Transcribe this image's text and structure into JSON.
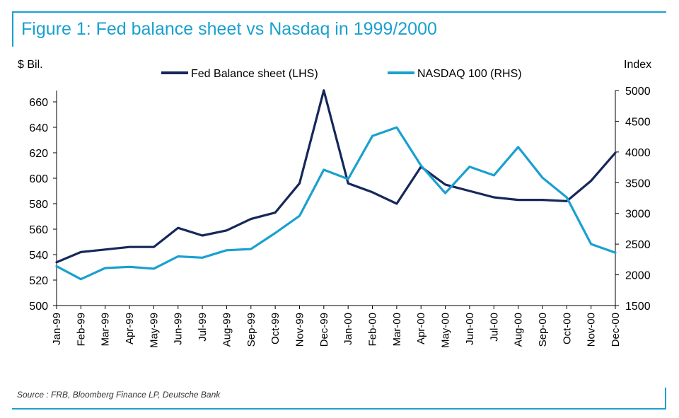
{
  "title": "Figure 1: Fed balance sheet vs Nasdaq in 1999/2000",
  "source": "Source : FRB, Bloomberg Finance LP, Deutsche Bank",
  "colors": {
    "accent": "#1aa0d0",
    "fed": "#16285a",
    "nasdaq": "#1aa0d0"
  },
  "chart_data": {
    "type": "line",
    "title": "Figure 1: Fed balance sheet vs Nasdaq in 1999/2000",
    "ylabel_left": "$ Bil.",
    "ylabel_right": "Index",
    "categories": [
      "Jan-99",
      "Feb-99",
      "Mar-99",
      "Apr-99",
      "May-99",
      "Jun-99",
      "Jul-99",
      "Aug-99",
      "Sep-99",
      "Oct-99",
      "Nov-99",
      "Dec-99",
      "Jan-00",
      "Feb-00",
      "Mar-00",
      "Apr-00",
      "May-00",
      "Jun-00",
      "Jul-00",
      "Aug-00",
      "Sep-00",
      "Oct-00",
      "Nov-00",
      "Dec-00"
    ],
    "ylim_left": [
      500,
      660
    ],
    "yticks_left": [
      500,
      520,
      540,
      560,
      580,
      600,
      620,
      640,
      660
    ],
    "ylim_right": [
      1500,
      5000
    ],
    "yticks_right": [
      1500,
      2000,
      2500,
      3000,
      3500,
      4000,
      4500,
      5000
    ],
    "legend": "top",
    "grid": false,
    "series": [
      {
        "name": "Fed Balance sheet (LHS)",
        "axis": "left",
        "color": "#16285a",
        "values": [
          534,
          542,
          544,
          546,
          546,
          561,
          555,
          559,
          568,
          573,
          596,
          669,
          596,
          589,
          580,
          609,
          595,
          590,
          585,
          583,
          583,
          582,
          598,
          620
        ]
      },
      {
        "name": "NASDAQ 100 (RHS)",
        "axis": "right",
        "color": "#1aa0d0",
        "values": [
          2140,
          1930,
          2110,
          2130,
          2100,
          2300,
          2280,
          2400,
          2420,
          2680,
          2960,
          3710,
          3560,
          4260,
          4400,
          3780,
          3330,
          3760,
          3620,
          4080,
          3580,
          3260,
          2500,
          2360
        ]
      }
    ]
  }
}
